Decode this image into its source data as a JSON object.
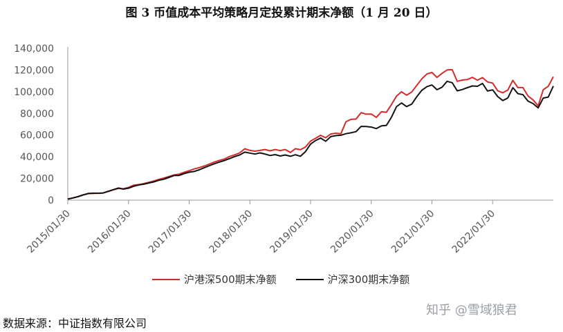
{
  "title": "图 3  币值成本平均策略月定投累计期末净额（1 月 20 日）",
  "source": "数据来源：中证指数有限公司",
  "watermark": "知乎 @雪域狼君",
  "chart_data": {
    "type": "line",
    "ylim": [
      0,
      140000
    ],
    "yticks": [
      0,
      20000,
      40000,
      60000,
      80000,
      100000,
      120000,
      140000
    ],
    "ytick_labels": [
      "0",
      "20,000",
      "40,000",
      "60,000",
      "80,000",
      "100,000",
      "120,000",
      "140,000"
    ],
    "xtick_labels": [
      "2015/01/30",
      "2016/01/30",
      "2017/01/30",
      "2018/01/30",
      "2019/01/30",
      "2020/01/30",
      "2021/01/30",
      "2022/01/30"
    ],
    "n_points": 97,
    "legend_position": "bottom",
    "series": [
      {
        "name": "沪港深500期末净额",
        "color": "#d42a2a",
        "values": [
          1000,
          2100,
          3300,
          4800,
          6000,
          6200,
          6300,
          6600,
          8000,
          9500,
          10800,
          10500,
          11800,
          13800,
          14300,
          15300,
          16400,
          17700,
          19100,
          20400,
          21800,
          23200,
          24000,
          25700,
          27200,
          28800,
          30000,
          31500,
          33300,
          35200,
          36700,
          38000,
          40300,
          41800,
          43600,
          47400,
          45900,
          45200,
          45900,
          46700,
          45500,
          46700,
          45700,
          46700,
          44000,
          47500,
          46500,
          49000,
          54500,
          57000,
          59800,
          57500,
          61000,
          61700,
          61300,
          72300,
          74500,
          74800,
          80700,
          79300,
          79400,
          76300,
          81500,
          81000,
          88200,
          95900,
          100000,
          96800,
          99700,
          105800,
          111800,
          116300,
          117700,
          113200,
          116900,
          120100,
          120300,
          109600,
          110700,
          111200,
          113200,
          110600,
          113000,
          109000,
          107900,
          100900,
          99000,
          101500,
          110500,
          103800,
          103800,
          96100,
          92400,
          87000,
          101800,
          105000,
          113800
        ]
      },
      {
        "name": "沪深300期末净额",
        "color": "#111111",
        "values": [
          1000,
          2000,
          3200,
          4800,
          6200,
          6400,
          6400,
          6600,
          8200,
          9700,
          11200,
          10200,
          11000,
          12800,
          14000,
          14700,
          15800,
          16800,
          18300,
          19300,
          21000,
          22700,
          22800,
          24500,
          25800,
          26500,
          28000,
          30000,
          31800,
          33600,
          35200,
          36600,
          38400,
          40200,
          41700,
          44300,
          43400,
          42500,
          43600,
          42500,
          41200,
          42000,
          40700,
          41700,
          40500,
          41900,
          40500,
          44800,
          51700,
          55000,
          57300,
          54300,
          58600,
          59500,
          59900,
          61300,
          62100,
          63200,
          68000,
          67900,
          67400,
          66000,
          68500,
          69000,
          76500,
          86200,
          89600,
          86300,
          88600,
          95400,
          101300,
          104600,
          106200,
          101800,
          104100,
          109600,
          108300,
          100800,
          102000,
          103700,
          105300,
          105000,
          107600,
          100600,
          101700,
          95500,
          91800,
          94200,
          103800,
          98200,
          97300,
          91300,
          89000,
          85100,
          94100,
          95100,
          105200
        ]
      }
    ]
  }
}
